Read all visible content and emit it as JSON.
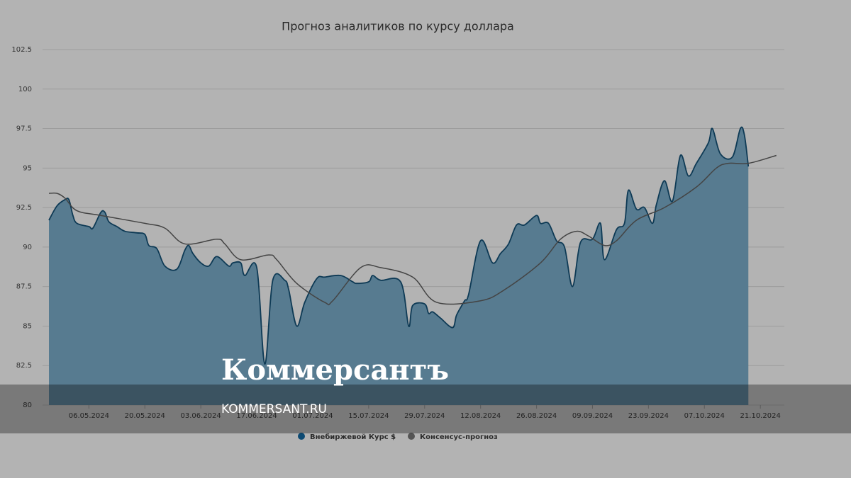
{
  "chart_data": {
    "type": "area",
    "title": "Прогноз аналитиков по курсу доллара",
    "xlim": [
      "2024-04-26",
      "2024-10-27"
    ],
    "xticks": [
      {
        "value": "2024-05-06",
        "label": "06.05.2024"
      },
      {
        "value": "2024-05-20",
        "label": "20.05.2024"
      },
      {
        "value": "2024-06-03",
        "label": "03.06.2024"
      },
      {
        "value": "2024-06-17",
        "label": "17.06.2024"
      },
      {
        "value": "2024-07-01",
        "label": "01.07.2024"
      },
      {
        "value": "2024-07-15",
        "label": "15.07.2024"
      },
      {
        "value": "2024-07-29",
        "label": "29.07.2024"
      },
      {
        "value": "2024-08-12",
        "label": "12.08.2024"
      },
      {
        "value": "2024-08-26",
        "label": "26.08.2024"
      },
      {
        "value": "2024-09-09",
        "label": "09.09.2024"
      },
      {
        "value": "2024-09-23",
        "label": "23.09.2024"
      },
      {
        "value": "2024-10-07",
        "label": "07.10.2024"
      },
      {
        "value": "2024-10-21",
        "label": "21.10.2024"
      }
    ],
    "ylim": [
      80,
      102.5
    ],
    "yticks": [
      80,
      82.5,
      85,
      87.5,
      90,
      92.5,
      95,
      97.5,
      100,
      102.5
    ],
    "grid": true,
    "series": [
      {
        "name": "Внебиржевой Курс $",
        "color": "#0e3a55",
        "fill": "#577b90",
        "marker_color": "#0d4a73",
        "x": [
          "2024-04-26",
          "2024-04-28",
          "2024-04-30",
          "2024-05-01",
          "2024-05-02",
          "2024-05-03",
          "2024-05-06",
          "2024-05-07",
          "2024-05-09",
          "2024-05-10",
          "2024-05-11",
          "2024-05-13",
          "2024-05-15",
          "2024-05-18",
          "2024-05-20",
          "2024-05-21",
          "2024-05-23",
          "2024-05-25",
          "2024-05-28",
          "2024-05-30",
          "2024-05-31",
          "2024-06-01",
          "2024-06-03",
          "2024-06-05",
          "2024-06-07",
          "2024-06-10",
          "2024-06-11",
          "2024-06-13",
          "2024-06-14",
          "2024-06-17",
          "2024-06-19",
          "2024-06-21",
          "2024-06-24",
          "2024-06-25",
          "2024-06-27",
          "2024-06-29",
          "2024-07-02",
          "2024-07-04",
          "2024-07-08",
          "2024-07-11",
          "2024-07-12",
          "2024-07-15",
          "2024-07-16",
          "2024-07-18",
          "2024-07-23",
          "2024-07-25",
          "2024-07-26",
          "2024-07-29",
          "2024-07-30",
          "2024-07-31",
          "2024-08-02",
          "2024-08-05",
          "2024-08-06",
          "2024-08-08",
          "2024-08-09",
          "2024-08-12",
          "2024-08-15",
          "2024-08-17",
          "2024-08-19",
          "2024-08-21",
          "2024-08-23",
          "2024-08-26",
          "2024-08-27",
          "2024-08-29",
          "2024-08-31",
          "2024-09-02",
          "2024-09-04",
          "2024-09-06",
          "2024-09-09",
          "2024-09-11",
          "2024-09-12",
          "2024-09-15",
          "2024-09-17",
          "2024-09-18",
          "2024-09-20",
          "2024-09-22",
          "2024-09-24",
          "2024-09-25",
          "2024-09-27",
          "2024-09-29",
          "2024-10-01",
          "2024-10-03",
          "2024-10-05",
          "2024-10-08",
          "2024-10-09",
          "2024-10-11",
          "2024-10-14",
          "2024-10-16",
          "2024-10-17",
          "2024-10-18"
        ],
        "values": [
          91.7,
          92.6,
          93.0,
          93.0,
          92.0,
          91.5,
          91.3,
          91.2,
          92.2,
          92.2,
          91.6,
          91.3,
          91.0,
          90.9,
          90.8,
          90.1,
          89.9,
          88.8,
          88.6,
          89.8,
          90.1,
          89.6,
          89.0,
          88.8,
          89.4,
          88.8,
          89.0,
          89.0,
          88.2,
          88.7,
          82.6,
          87.9,
          87.9,
          87.3,
          85.0,
          86.5,
          88.0,
          88.1,
          88.2,
          87.8,
          87.7,
          87.8,
          88.2,
          87.9,
          87.8,
          85.0,
          86.3,
          86.4,
          85.8,
          85.9,
          85.5,
          84.9,
          85.7,
          86.6,
          87.0,
          90.4,
          89.0,
          89.6,
          90.2,
          91.4,
          91.4,
          92.0,
          91.5,
          91.5,
          90.4,
          90.0,
          87.5,
          90.3,
          90.5,
          91.5,
          89.2,
          91.1,
          91.5,
          93.6,
          92.4,
          92.5,
          91.5,
          92.7,
          94.2,
          92.9,
          95.8,
          94.5,
          95.3,
          96.6,
          97.5,
          95.9,
          95.7,
          97.5,
          97.1,
          95.1
        ]
      },
      {
        "name": "Консенсус-прогноз",
        "color": "#444444",
        "marker_color": "#555555",
        "x": [
          "2024-04-26",
          "2024-04-28",
          "2024-04-30",
          "2024-05-03",
          "2024-05-09",
          "2024-05-20",
          "2024-05-25",
          "2024-05-30",
          "2024-06-07",
          "2024-06-09",
          "2024-06-13",
          "2024-06-20",
          "2024-06-22",
          "2024-06-27",
          "2024-07-04",
          "2024-07-06",
          "2024-07-13",
          "2024-07-18",
          "2024-07-26",
          "2024-08-01",
          "2024-08-12",
          "2024-08-18",
          "2024-08-27",
          "2024-09-01",
          "2024-09-05",
          "2024-09-08",
          "2024-09-12",
          "2024-09-15",
          "2024-09-20",
          "2024-09-27",
          "2024-10-05",
          "2024-10-10",
          "2024-10-13",
          "2024-10-18",
          "2024-10-25"
        ],
        "values": [
          93.4,
          93.4,
          93.1,
          92.3,
          92.0,
          91.5,
          91.2,
          90.2,
          90.5,
          90.2,
          89.2,
          89.5,
          89.2,
          87.7,
          86.5,
          86.6,
          88.7,
          88.7,
          88.1,
          86.5,
          86.6,
          87.3,
          89.0,
          90.5,
          91.0,
          90.7,
          90.1,
          90.4,
          91.7,
          92.5,
          93.8,
          95.0,
          95.3,
          95.3,
          95.8
        ]
      }
    ]
  },
  "watermark": {
    "logo": "Коммерсантъ",
    "url": "KOMMERSANT.RU"
  }
}
